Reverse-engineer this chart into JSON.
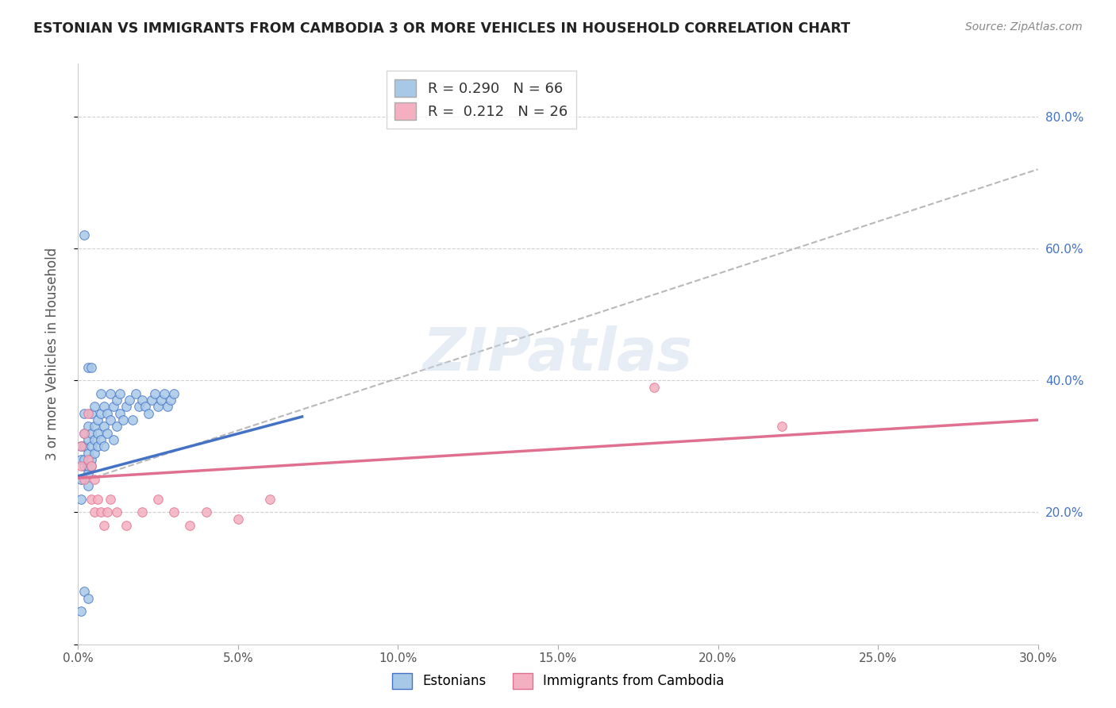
{
  "title": "ESTONIAN VS IMMIGRANTS FROM CAMBODIA 3 OR MORE VEHICLES IN HOUSEHOLD CORRELATION CHART",
  "source": "Source: ZipAtlas.com",
  "ylabel": "3 or more Vehicles in Household",
  "xlim": [
    0.0,
    0.3
  ],
  "ylim": [
    0.0,
    0.88
  ],
  "R_estonian": 0.29,
  "N_estonian": 66,
  "R_cambodia": 0.212,
  "N_cambodia": 26,
  "color_estonian": "#a8c8e8",
  "color_cambodia": "#f4b0c0",
  "trend_estonian": "#4472c4",
  "trend_cambodia": "#e07090",
  "trend_dashed": "#b8b8b8",
  "watermark": "ZIPatlas",
  "background_color": "#ffffff",
  "grid_color": "#d0d0d0",
  "estonian_x": [
    0.001,
    0.001,
    0.001,
    0.001,
    0.002,
    0.002,
    0.002,
    0.002,
    0.002,
    0.003,
    0.003,
    0.003,
    0.003,
    0.003,
    0.003,
    0.004,
    0.004,
    0.004,
    0.004,
    0.004,
    0.005,
    0.005,
    0.005,
    0.005,
    0.006,
    0.006,
    0.006,
    0.007,
    0.007,
    0.007,
    0.008,
    0.008,
    0.008,
    0.009,
    0.009,
    0.01,
    0.01,
    0.011,
    0.011,
    0.012,
    0.012,
    0.013,
    0.013,
    0.014,
    0.015,
    0.016,
    0.017,
    0.018,
    0.019,
    0.02,
    0.021,
    0.022,
    0.023,
    0.024,
    0.025,
    0.026,
    0.027,
    0.028,
    0.029,
    0.03,
    0.001,
    0.002,
    0.003,
    0.002,
    0.003,
    0.004
  ],
  "estonian_y": [
    0.25,
    0.28,
    0.22,
    0.3,
    0.27,
    0.3,
    0.35,
    0.28,
    0.32,
    0.26,
    0.29,
    0.31,
    0.33,
    0.27,
    0.24,
    0.3,
    0.32,
    0.35,
    0.28,
    0.27,
    0.31,
    0.33,
    0.29,
    0.36,
    0.3,
    0.34,
    0.32,
    0.35,
    0.31,
    0.38,
    0.33,
    0.3,
    0.36,
    0.32,
    0.35,
    0.34,
    0.38,
    0.31,
    0.36,
    0.33,
    0.37,
    0.35,
    0.38,
    0.34,
    0.36,
    0.37,
    0.34,
    0.38,
    0.36,
    0.37,
    0.36,
    0.35,
    0.37,
    0.38,
    0.36,
    0.37,
    0.38,
    0.36,
    0.37,
    0.38,
    0.05,
    0.08,
    0.07,
    0.62,
    0.42,
    0.42
  ],
  "cambodia_x": [
    0.001,
    0.001,
    0.002,
    0.002,
    0.003,
    0.003,
    0.004,
    0.004,
    0.005,
    0.005,
    0.006,
    0.007,
    0.008,
    0.009,
    0.01,
    0.012,
    0.015,
    0.02,
    0.025,
    0.03,
    0.035,
    0.04,
    0.05,
    0.06,
    0.18,
    0.22
  ],
  "cambodia_y": [
    0.27,
    0.3,
    0.25,
    0.32,
    0.28,
    0.35,
    0.22,
    0.27,
    0.2,
    0.25,
    0.22,
    0.2,
    0.18,
    0.2,
    0.22,
    0.2,
    0.18,
    0.2,
    0.22,
    0.2,
    0.18,
    0.2,
    0.19,
    0.22,
    0.39,
    0.33
  ],
  "trend_est_x0": 0.0,
  "trend_est_x1": 0.07,
  "trend_est_y0": 0.255,
  "trend_est_y1": 0.345,
  "trend_cam_x0": 0.0,
  "trend_cam_x1": 0.3,
  "trend_cam_y0": 0.252,
  "trend_cam_y1": 0.34,
  "trend_dash_x0": 0.0,
  "trend_dash_x1": 0.3,
  "trend_dash_y0": 0.245,
  "trend_dash_y1": 0.72
}
